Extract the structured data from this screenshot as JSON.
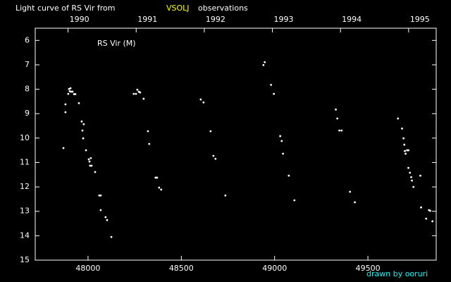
{
  "chart_data": {
    "type": "scatter",
    "title": "Light curve of RS Vir from",
    "title_highlight": "VSOLJ",
    "title_suffix": "observations",
    "annotation": "RS Vir (M)",
    "credit": "drawn by ooruri",
    "color": "#ffffff",
    "background": "#000000",
    "xlim": [
      47717,
      49866
    ],
    "ylim": [
      15,
      5.5
    ],
    "xticks": [
      48000,
      48500,
      49000,
      49500
    ],
    "yticks": [
      6,
      7,
      8,
      9,
      10,
      11,
      12,
      13,
      14,
      15
    ],
    "x2ticks": [
      {
        "value": 47893,
        "label": "1990"
      },
      {
        "value": 48258,
        "label": "1991"
      },
      {
        "value": 48623,
        "label": "1992"
      },
      {
        "value": 48988,
        "label": "1993"
      },
      {
        "value": 49353,
        "label": "1994"
      },
      {
        "value": 49718,
        "label": "1995"
      }
    ],
    "x": [
      47868,
      47879,
      47879,
      47894,
      47898,
      47902,
      47906,
      47909,
      47917,
      47925,
      47932,
      47951,
      47966,
      47970,
      47974,
      47977,
      47989,
      48004,
      48008,
      48011,
      48019,
      48015,
      48038,
      48060,
      48068,
      48068,
      48094,
      48102,
      48125,
      48245,
      48257,
      48264,
      48272,
      48279,
      48298,
      48321,
      48328,
      48362,
      48370,
      48381,
      48392,
      48604,
      48619,
      48657,
      48672,
      48683,
      48736,
      48940,
      48947,
      48981,
      48996,
      49030,
      49038,
      49045,
      49076,
      49106,
      49328,
      49336,
      49347,
      49359,
      49404,
      49430,
      49661,
      49683,
      49691,
      49695,
      49698,
      49702,
      49710,
      49717,
      49717,
      49725,
      49732,
      49736,
      49744,
      49781,
      49785,
      49812,
      49827,
      49834,
      49846
    ],
    "values": [
      10.41,
      8.62,
      8.94,
      8.19,
      7.99,
      8.08,
      7.96,
      8.1,
      8.1,
      8.2,
      8.2,
      8.57,
      9.32,
      9.69,
      10.01,
      9.43,
      10.5,
      10.87,
      10.96,
      11.13,
      11.13,
      10.82,
      11.39,
      12.35,
      12.35,
      12.95,
      13.24,
      13.36,
      14.05,
      8.19,
      8.19,
      8.02,
      8.1,
      8.13,
      8.39,
      9.72,
      10.24,
      11.62,
      11.62,
      12.03,
      12.11,
      8.42,
      8.54,
      9.72,
      10.73,
      10.85,
      12.35,
      7.01,
      6.89,
      7.82,
      8.19,
      9.92,
      10.12,
      10.64,
      11.54,
      12.55,
      8.83,
      9.2,
      9.69,
      9.69,
      12.2,
      12.63,
      9.2,
      9.61,
      10.01,
      10.27,
      10.53,
      10.64,
      10.5,
      10.5,
      11.22,
      11.42,
      11.6,
      11.74,
      12.0,
      11.54,
      12.84,
      13.3,
      12.95,
      12.98,
      13.41
    ]
  }
}
